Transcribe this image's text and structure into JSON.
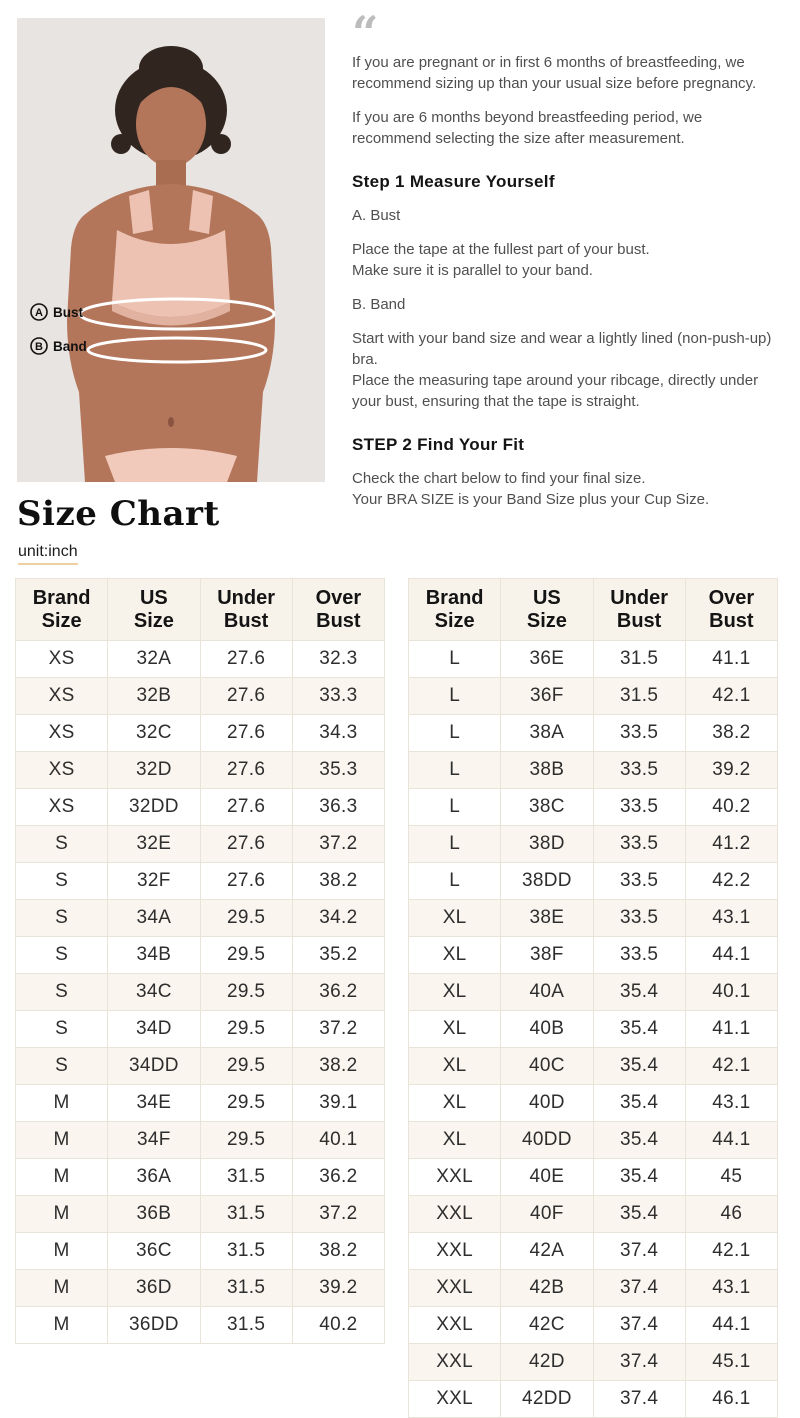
{
  "photo": {
    "marker_a": {
      "letter": "A",
      "label": "Bust"
    },
    "marker_b": {
      "letter": "B",
      "label": "Band"
    }
  },
  "notes": {
    "para1": "If you are pregnant or in first 6 months of breastfeeding, we recommend sizing up than your usual size before pregnancy.",
    "para2": "If you are 6 months beyond breastfeeding period, we recommend selecting the size after measurement."
  },
  "steps": {
    "step1": {
      "title": "Step 1 Measure Yourself",
      "bust_label": "A. Bust",
      "bust_line1": "Place the tape at the fullest part of your bust.",
      "bust_line2": "Make sure it is parallel to your band.",
      "band_label": "B. Band",
      "band_line1": "Start with your band size and wear a lightly lined (non-push-up) bra.",
      "band_line2": "Place the measuring tape around your ribcage, directly under your bust, ensuring that the tape is straight."
    },
    "step2": {
      "title": "STEP 2 Find Your Fit",
      "line1": "Check the chart below to find your final size.",
      "line2": "Your BRA SIZE is your Band Size plus your Cup Size."
    }
  },
  "size_chart": {
    "title": "Size Chart",
    "unit": "unit:inch",
    "headers": [
      [
        "Brand",
        "Size"
      ],
      [
        "US",
        "Size"
      ],
      [
        "Under",
        "Bust"
      ],
      [
        "Over",
        "Bust"
      ]
    ],
    "left_rows": [
      [
        "XS",
        "32A",
        "27.6",
        "32.3"
      ],
      [
        "XS",
        "32B",
        "27.6",
        "33.3"
      ],
      [
        "XS",
        "32C",
        "27.6",
        "34.3"
      ],
      [
        "XS",
        "32D",
        "27.6",
        "35.3"
      ],
      [
        "XS",
        "32DD",
        "27.6",
        "36.3"
      ],
      [
        "S",
        "32E",
        "27.6",
        "37.2"
      ],
      [
        "S",
        "32F",
        "27.6",
        "38.2"
      ],
      [
        "S",
        "34A",
        "29.5",
        "34.2"
      ],
      [
        "S",
        "34B",
        "29.5",
        "35.2"
      ],
      [
        "S",
        "34C",
        "29.5",
        "36.2"
      ],
      [
        "S",
        "34D",
        "29.5",
        "37.2"
      ],
      [
        "S",
        "34DD",
        "29.5",
        "38.2"
      ],
      [
        "M",
        "34E",
        "29.5",
        "39.1"
      ],
      [
        "M",
        "34F",
        "29.5",
        "40.1"
      ],
      [
        "M",
        "36A",
        "31.5",
        "36.2"
      ],
      [
        "M",
        "36B",
        "31.5",
        "37.2"
      ],
      [
        "M",
        "36C",
        "31.5",
        "38.2"
      ],
      [
        "M",
        "36D",
        "31.5",
        "39.2"
      ],
      [
        "M",
        "36DD",
        "31.5",
        "40.2"
      ]
    ],
    "right_rows": [
      [
        "L",
        "36E",
        "31.5",
        "41.1"
      ],
      [
        "L",
        "36F",
        "31.5",
        "42.1"
      ],
      [
        "L",
        "38A",
        "33.5",
        "38.2"
      ],
      [
        "L",
        "38B",
        "33.5",
        "39.2"
      ],
      [
        "L",
        "38C",
        "33.5",
        "40.2"
      ],
      [
        "L",
        "38D",
        "33.5",
        "41.2"
      ],
      [
        "L",
        "38DD",
        "33.5",
        "42.2"
      ],
      [
        "XL",
        "38E",
        "33.5",
        "43.1"
      ],
      [
        "XL",
        "38F",
        "33.5",
        "44.1"
      ],
      [
        "XL",
        "40A",
        "35.4",
        "40.1"
      ],
      [
        "XL",
        "40B",
        "35.4",
        "41.1"
      ],
      [
        "XL",
        "40C",
        "35.4",
        "42.1"
      ],
      [
        "XL",
        "40D",
        "35.4",
        "43.1"
      ],
      [
        "XL",
        "40DD",
        "35.4",
        "44.1"
      ],
      [
        "XXL",
        "40E",
        "35.4",
        "45"
      ],
      [
        "XXL",
        "40F",
        "35.4",
        "46"
      ],
      [
        "XXL",
        "42A",
        "37.4",
        "42.1"
      ],
      [
        "XXL",
        "42B",
        "37.4",
        "43.1"
      ],
      [
        "XXL",
        "42C",
        "37.4",
        "44.1"
      ],
      [
        "XXL",
        "42D",
        "37.4",
        "45.1"
      ],
      [
        "XXL",
        "42DD",
        "37.4",
        "46.1"
      ]
    ]
  },
  "colors": {
    "cream_row": "#faf5ee",
    "header_bg": "#f8f3ea",
    "unit_underline": "#eecf9f",
    "quote_icon": "#bcbcbc",
    "photo_bg": "#e8e4e1",
    "bra_pink": "#edc2b2"
  }
}
